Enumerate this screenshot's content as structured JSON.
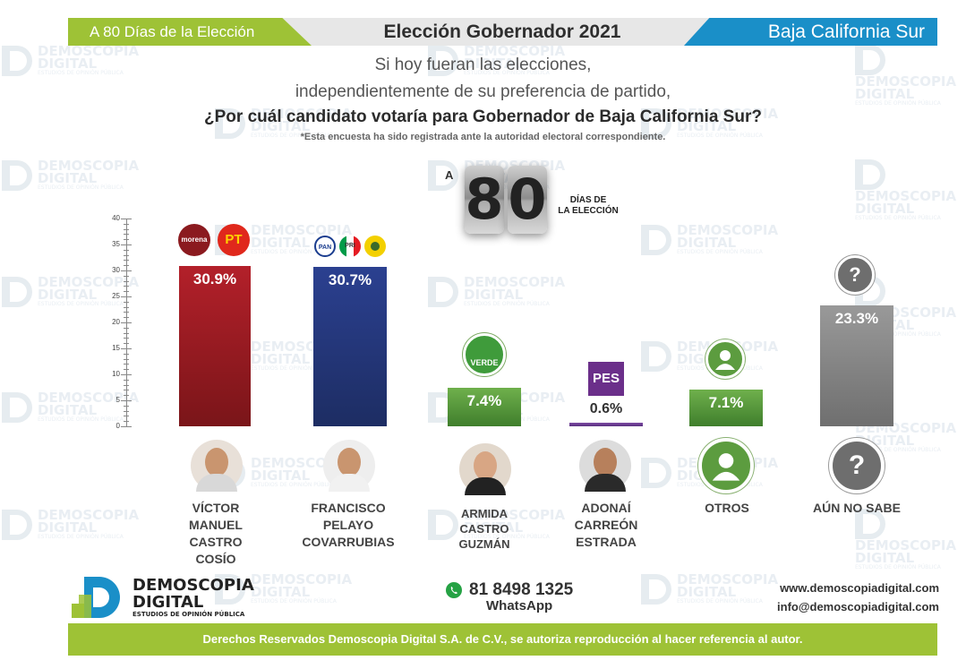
{
  "header": {
    "left": "A 80 Días de la Elección",
    "center": "Elección Gobernador 2021",
    "right": "Baja California Sur"
  },
  "question": {
    "line1": "Si hoy fueran las elecciones,",
    "line2": "independientemente de su preferencia de partido,",
    "line3": "¿Por cuál candidato votaría para Gobernador de Baja California Sur?",
    "note": "*Esta encuesta ha sido registrada ante la autoridad electoral correspondiente."
  },
  "countdown": {
    "prefix": "A",
    "digit1": "8",
    "digit2": "0",
    "label_line1": "DÍAS DE",
    "label_line2": "LA ELECCIÓN"
  },
  "party_logos": {
    "morena": "morena",
    "pt": "PT",
    "pan": "PAN",
    "pri": "PRI",
    "verde": "VERDE",
    "pes": "PES"
  },
  "chart_data": {
    "type": "bar",
    "ylim": [
      0,
      40
    ],
    "yticks": [
      0,
      5,
      10,
      15,
      20,
      25,
      30,
      35,
      40
    ],
    "categories": [
      "VÍCTOR MANUEL CASTRO COSÍO",
      "FRANCISCO PELAYO COVARRUBIAS",
      "ARMIDA CASTRO GUZMÁN",
      "ADONAÍ CARREÓN ESTRADA",
      "OTROS",
      "AÚN NO SABE"
    ],
    "values": [
      30.9,
      30.7,
      7.4,
      0.6,
      7.1,
      23.3
    ],
    "labels": [
      "30.9%",
      "30.7%",
      "7.4%",
      "0.6%",
      "7.1%",
      "23.3%"
    ],
    "colors": [
      "#9b1b24",
      "#233776",
      "#5c9c3f",
      "#6b3f91",
      "#5c9c3f",
      "#8a8a8a"
    ]
  },
  "candidates": [
    {
      "line1": "VÍCTOR",
      "line2": "MANUEL",
      "line3": "CASTRO",
      "line4": "COSÍO"
    },
    {
      "line1": "FRANCISCO",
      "line2": "PELAYO",
      "line3": "COVARRUBIAS"
    },
    {
      "line1": "ARMIDA",
      "line2": "CASTRO",
      "line3": "GUZMÁN"
    },
    {
      "line1": "ADONAÍ",
      "line2": "CARREÓN",
      "line3": "ESTRADA"
    },
    {
      "line1": "OTROS"
    },
    {
      "line1": "AÚN NO SABE"
    }
  ],
  "watermark": {
    "line1": "DEMOSCOPIA",
    "line2": "DIGITAL",
    "line3": "ESTUDIOS DE OPINIÓN PÚBLICA"
  },
  "footer": {
    "brand_line1": "DEMOSCOPIA",
    "brand_line2": "DIGITAL",
    "brand_line3": "ESTUDIOS DE OPINIÓN PÚBLICA",
    "phone": "81 8498 1325",
    "whatsapp": "WhatsApp",
    "web": "www.demoscopiadigital.com",
    "email": "info@demoscopiadigital.com",
    "rights": "Derechos Reservados Demoscopia Digital S.A. de C.V., se autoriza reproducción al hacer referencia al autor."
  }
}
